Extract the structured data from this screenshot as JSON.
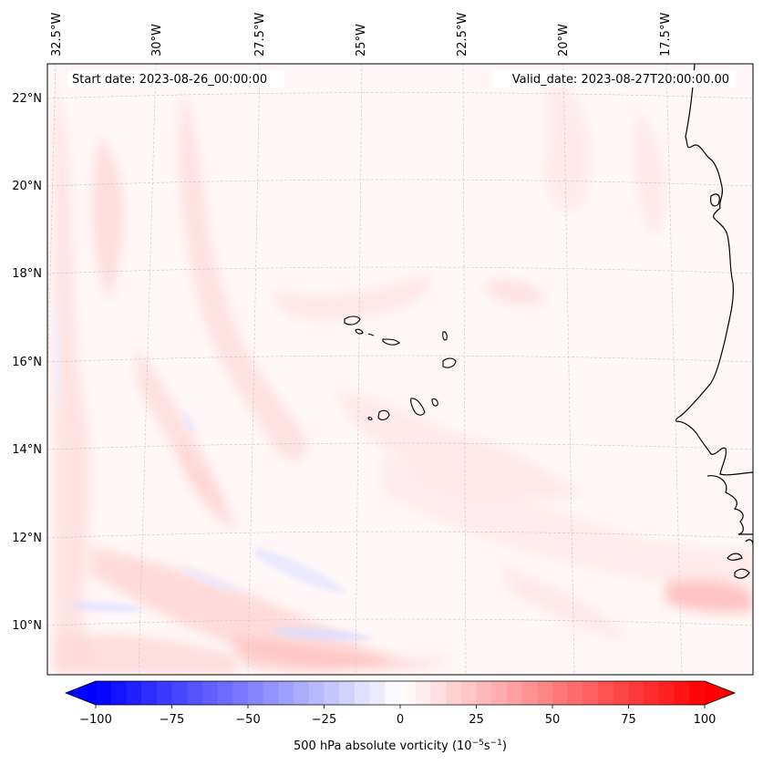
{
  "map": {
    "start_date": "Start date: 2023-08-26_00:00:00",
    "valid_date": "Valid_date: 2023-08-27T20:00:00.00",
    "lon_labels": [
      "32.5°W",
      "30°W",
      "27.5°W",
      "25°W",
      "22.5°W",
      "20°W",
      "17.5°W"
    ],
    "lat_labels": [
      "22°N",
      "20°N",
      "18°N",
      "16°N",
      "14°N",
      "12°N",
      "10°N"
    ]
  },
  "colorbar": {
    "label_prefix": "500 hPa absolute vorticity (10",
    "label_exp1": "−5",
    "label_mid": "s",
    "label_exp2": "−1",
    "label_suffix": ")",
    "ticks": [
      "−100",
      "−75",
      "−50",
      "−25",
      "0",
      "25",
      "50",
      "75",
      "100"
    ],
    "min": -100,
    "max": 100,
    "low_color": "#0000ff",
    "mid_color": "#ffffff",
    "high_color": "#ff0000"
  }
}
